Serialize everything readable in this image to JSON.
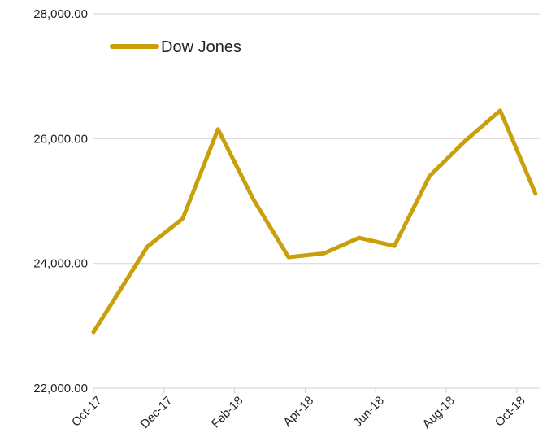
{
  "chart_data": {
    "type": "line",
    "title": "",
    "xlabel": "",
    "ylabel": "",
    "x": [
      "Oct-17",
      "Nov-17",
      "Dec-17",
      "Jan-18",
      "Feb-18",
      "Mar-18",
      "Apr-18",
      "May-18",
      "Jun-18",
      "Jul-18",
      "Aug-18",
      "Sep-18",
      "Oct-18"
    ],
    "x_tick_labels": [
      "Oct-17",
      "Dec-17",
      "Feb-18",
      "Apr-18",
      "Jun-18",
      "Aug-18",
      "Oct-18"
    ],
    "ylim": [
      22000,
      28000
    ],
    "y_ticks": [
      22000,
      24000,
      26000,
      28000
    ],
    "y_tick_labels": [
      "22,000.00",
      "24,000.00",
      "26,000.00",
      "28,000.00"
    ],
    "series": [
      {
        "name": "Dow Jones",
        "color": "#C9A00B",
        "points": [
          {
            "x": "Oct-17",
            "y": 22900
          },
          {
            "x": "Oct-17",
            "y": 23370
          },
          {
            "x": "Nov-17",
            "y": 24270
          },
          {
            "x": "Dec-17",
            "y": 24720
          },
          {
            "x": "Jan-18",
            "y": 26150
          },
          {
            "x": "Feb-18",
            "y": 25030
          },
          {
            "x": "Mar-18",
            "y": 24100
          },
          {
            "x": "Apr-18",
            "y": 24160
          },
          {
            "x": "May-18",
            "y": 24410
          },
          {
            "x": "Jun-18",
            "y": 24280
          },
          {
            "x": "Jul-18",
            "y": 25400
          },
          {
            "x": "Aug-18",
            "y": 25960
          },
          {
            "x": "Sep-18",
            "y": 26450
          },
          {
            "x": "Oct-18",
            "y": 25120
          }
        ]
      }
    ],
    "grid": true,
    "legend_position": "top-left"
  }
}
